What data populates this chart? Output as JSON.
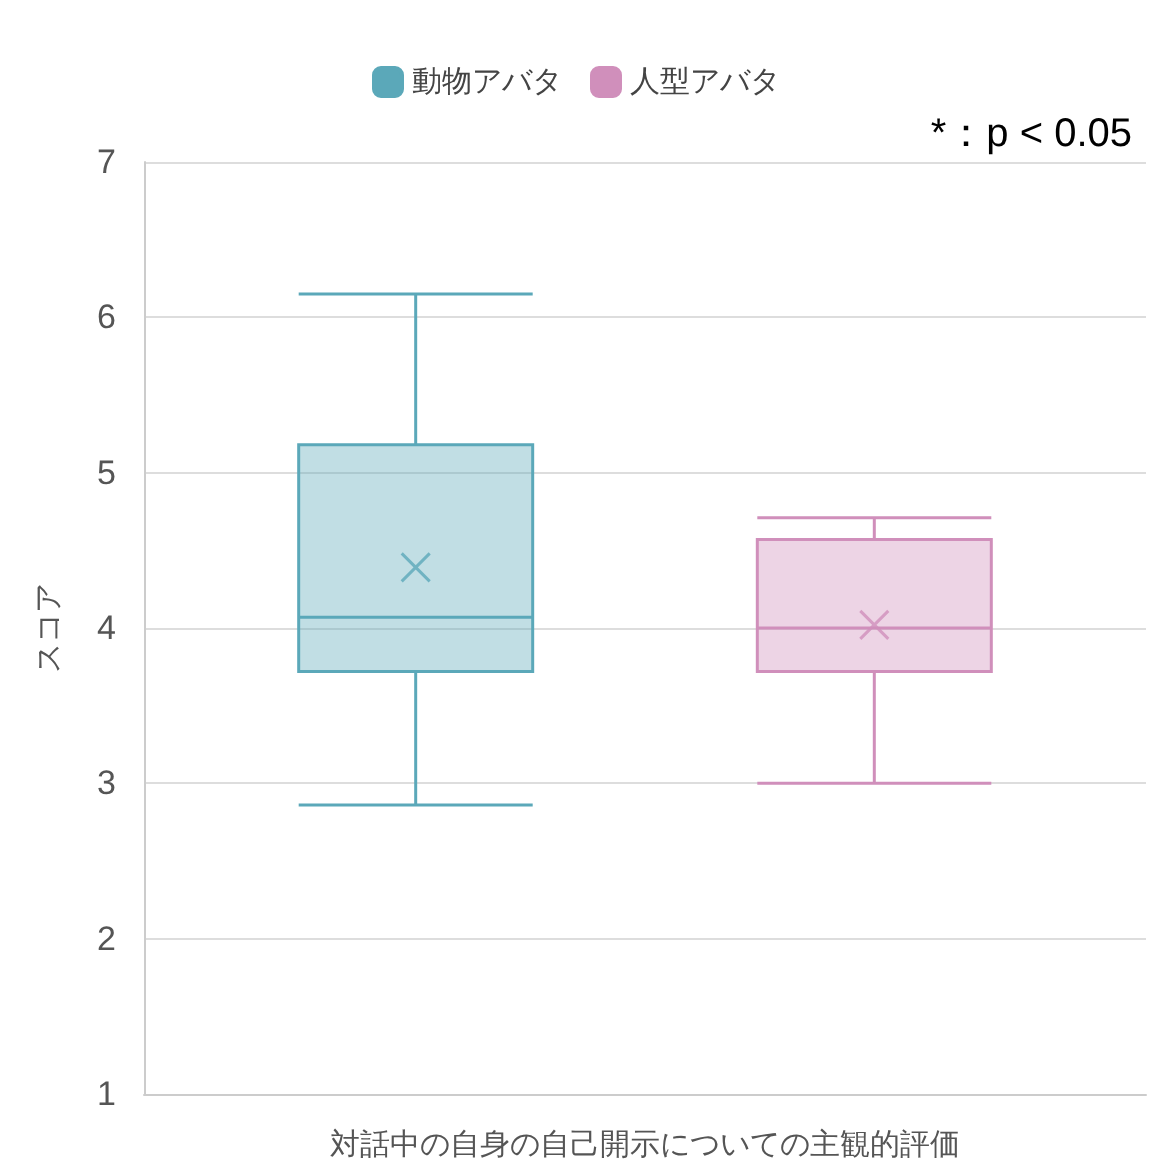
{
  "chart_data": {
    "type": "box",
    "xlabel": "対話中の自身の自己開示についての主観的評価",
    "ylabel": "スコア",
    "categories": [
      null
    ],
    "series": [
      {
        "name": "動物アバタ",
        "color": "#5ba8b9",
        "boxes": [
          {
            "low": 2.86,
            "q1": 3.72,
            "median": 4.07,
            "q3": 5.18,
            "high": 6.15,
            "mean": 4.39
          }
        ]
      },
      {
        "name": "人型アバタ",
        "color": "#d08fbb",
        "boxes": [
          {
            "low": 3.0,
            "q1": 3.72,
            "median": 4.0,
            "q3": 4.57,
            "high": 4.71,
            "mean": 4.02
          }
        ]
      }
    ],
    "ylim": [
      1,
      7
    ],
    "yticks": [
      1,
      2,
      3,
      4,
      5,
      6,
      7
    ],
    "grid": "y",
    "legend": "top",
    "marker": "cross",
    "annotations": [
      "*：p < 0.05"
    ]
  }
}
